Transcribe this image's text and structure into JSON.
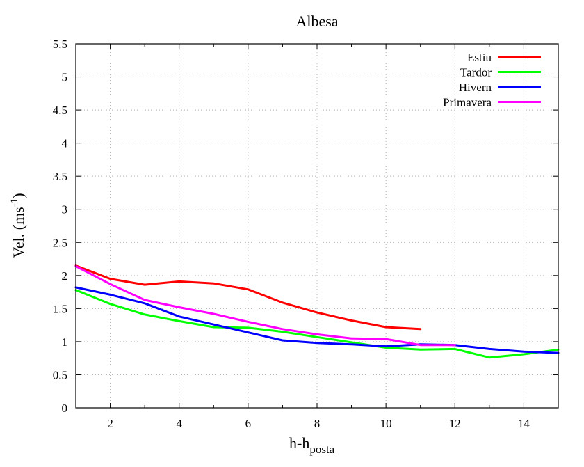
{
  "chart_data": {
    "type": "line",
    "title": "Albesa",
    "xlabel": {
      "main": "h-h",
      "sub": "posta"
    },
    "ylabel": {
      "main": "Vel. (ms",
      "sup": "-1",
      "tail": ")"
    },
    "xlim": [
      1,
      15
    ],
    "ylim": [
      0,
      5.5
    ],
    "xticks": [
      2,
      4,
      6,
      8,
      10,
      12,
      14
    ],
    "xtick_labels": [
      "2",
      "4",
      "6",
      "8",
      "10",
      "12",
      "14"
    ],
    "yticks": [
      0,
      0.5,
      1,
      1.5,
      2,
      2.5,
      3,
      3.5,
      4,
      4.5,
      5,
      5.5
    ],
    "ytick_labels": [
      "0",
      "0.5",
      "1",
      "1.5",
      "2",
      "2.5",
      "3",
      "3.5",
      "4",
      "4.5",
      "5",
      "5.5"
    ],
    "grid": true,
    "legend_position": "top-right",
    "series": [
      {
        "name": "Estiu",
        "color": "#ff0000",
        "x": [
          1,
          2,
          3,
          4,
          5,
          6,
          7,
          8,
          9,
          10,
          11
        ],
        "y": [
          2.15,
          1.95,
          1.86,
          1.91,
          1.88,
          1.79,
          1.59,
          1.44,
          1.32,
          1.22,
          1.19
        ]
      },
      {
        "name": "Tardor",
        "color": "#00ff00",
        "x": [
          1,
          2,
          3,
          4,
          5,
          6,
          7,
          8,
          9,
          10,
          11,
          12,
          13,
          14,
          15
        ],
        "y": [
          1.78,
          1.57,
          1.41,
          1.31,
          1.22,
          1.21,
          1.15,
          1.07,
          0.99,
          0.91,
          0.88,
          0.89,
          0.76,
          0.81,
          0.88
        ]
      },
      {
        "name": "Hivern",
        "color": "#0000ff",
        "x": [
          1,
          2,
          3,
          4,
          5,
          6,
          7,
          8,
          9,
          10,
          11,
          12,
          13,
          14,
          15
        ],
        "y": [
          1.82,
          1.71,
          1.58,
          1.38,
          1.26,
          1.14,
          1.02,
          0.98,
          0.96,
          0.93,
          0.96,
          0.95,
          0.89,
          0.85,
          0.83
        ]
      },
      {
        "name": "Primavera",
        "color": "#ff00ff",
        "x": [
          1,
          2,
          3,
          4,
          5,
          6,
          7,
          8,
          9,
          10,
          11,
          12
        ],
        "y": [
          2.14,
          1.87,
          1.63,
          1.52,
          1.42,
          1.3,
          1.19,
          1.11,
          1.05,
          1.04,
          0.95,
          0.95
        ]
      }
    ]
  }
}
